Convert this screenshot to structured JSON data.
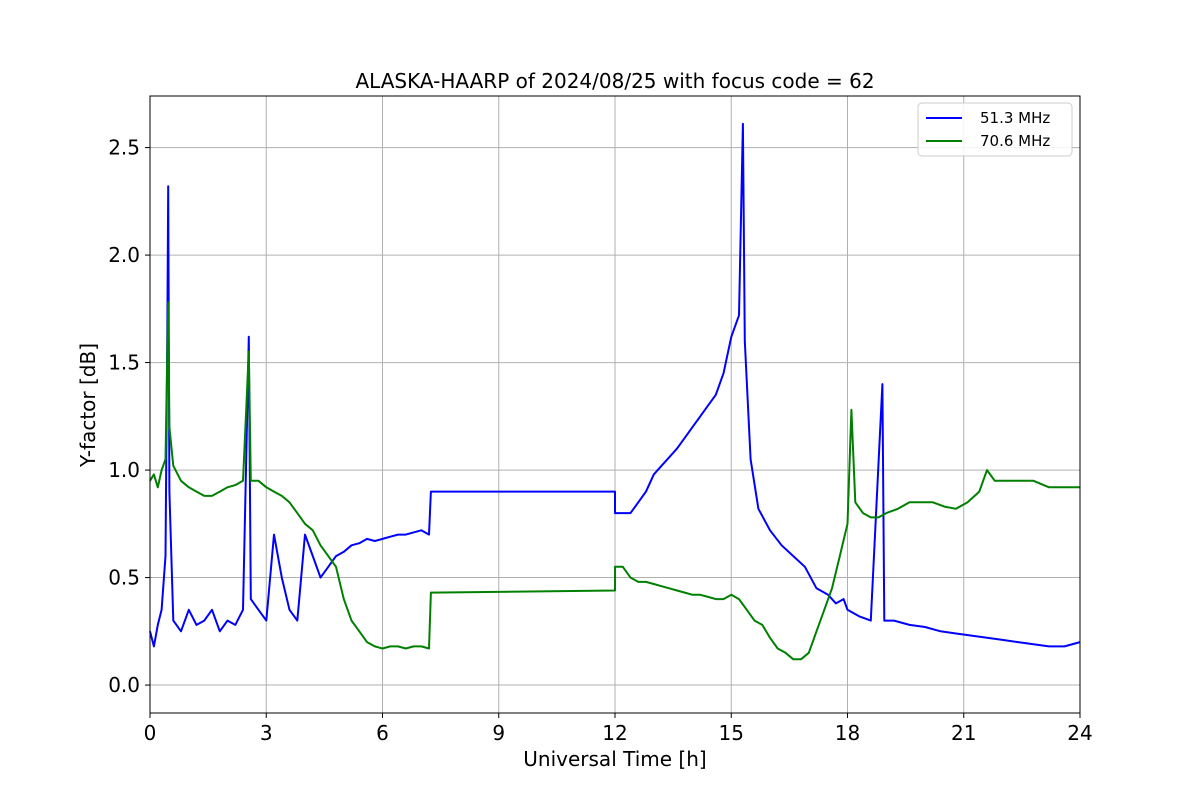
{
  "chart_data": {
    "type": "line",
    "title": "ALASKA-HAARP of 2024/08/25 with focus code = 62",
    "xlabel": "Universal Time [h]",
    "ylabel": "Y-factor [dB]",
    "xlim": [
      0,
      24
    ],
    "ylim": [
      -0.13,
      2.74
    ],
    "xticks": [
      0,
      3,
      6,
      9,
      12,
      15,
      18,
      21,
      24
    ],
    "yticks": [
      0.0,
      0.5,
      1.0,
      1.5,
      2.0,
      2.5
    ],
    "ytick_labels": [
      "0.0",
      "0.5",
      "1.0",
      "1.5",
      "2.0",
      "2.5"
    ],
    "grid": true,
    "legend_position": "top-right",
    "series": [
      {
        "name": "51.3 MHz",
        "color": "#0000ff",
        "points": [
          [
            0.0,
            0.25
          ],
          [
            0.1,
            0.18
          ],
          [
            0.2,
            0.28
          ],
          [
            0.3,
            0.35
          ],
          [
            0.4,
            0.6
          ],
          [
            0.45,
            1.7
          ],
          [
            0.47,
            2.32
          ],
          [
            0.5,
            0.9
          ],
          [
            0.6,
            0.3
          ],
          [
            0.8,
            0.25
          ],
          [
            1.0,
            0.35
          ],
          [
            1.2,
            0.28
          ],
          [
            1.4,
            0.3
          ],
          [
            1.6,
            0.35
          ],
          [
            1.8,
            0.25
          ],
          [
            2.0,
            0.3
          ],
          [
            2.2,
            0.28
          ],
          [
            2.4,
            0.35
          ],
          [
            2.55,
            1.62
          ],
          [
            2.6,
            0.4
          ],
          [
            2.8,
            0.35
          ],
          [
            3.0,
            0.3
          ],
          [
            3.2,
            0.7
          ],
          [
            3.4,
            0.5
          ],
          [
            3.6,
            0.35
          ],
          [
            3.8,
            0.3
          ],
          [
            4.0,
            0.7
          ],
          [
            4.2,
            0.6
          ],
          [
            4.4,
            0.5
          ],
          [
            4.6,
            0.55
          ],
          [
            4.8,
            0.6
          ],
          [
            5.0,
            0.62
          ],
          [
            5.2,
            0.65
          ],
          [
            5.4,
            0.66
          ],
          [
            5.6,
            0.68
          ],
          [
            5.8,
            0.67
          ],
          [
            6.0,
            0.68
          ],
          [
            6.2,
            0.69
          ],
          [
            6.4,
            0.7
          ],
          [
            6.6,
            0.7
          ],
          [
            6.8,
            0.71
          ],
          [
            7.0,
            0.72
          ],
          [
            7.2,
            0.7
          ],
          [
            7.25,
            0.9
          ],
          [
            12.0,
            0.9
          ],
          [
            12.0,
            0.8
          ],
          [
            12.2,
            0.8
          ],
          [
            12.4,
            0.8
          ],
          [
            12.6,
            0.85
          ],
          [
            12.8,
            0.9
          ],
          [
            13.0,
            0.98
          ],
          [
            13.2,
            1.02
          ],
          [
            13.4,
            1.06
          ],
          [
            13.6,
            1.1
          ],
          [
            13.8,
            1.15
          ],
          [
            14.0,
            1.2
          ],
          [
            14.2,
            1.25
          ],
          [
            14.4,
            1.3
          ],
          [
            14.6,
            1.35
          ],
          [
            14.8,
            1.45
          ],
          [
            15.0,
            1.62
          ],
          [
            15.2,
            1.72
          ],
          [
            15.3,
            2.61
          ],
          [
            15.35,
            1.6
          ],
          [
            15.5,
            1.05
          ],
          [
            15.7,
            0.82
          ],
          [
            16.0,
            0.72
          ],
          [
            16.3,
            0.65
          ],
          [
            16.6,
            0.6
          ],
          [
            16.9,
            0.55
          ],
          [
            17.2,
            0.45
          ],
          [
            17.5,
            0.42
          ],
          [
            17.7,
            0.38
          ],
          [
            17.9,
            0.4
          ],
          [
            18.0,
            0.35
          ],
          [
            18.3,
            0.32
          ],
          [
            18.6,
            0.3
          ],
          [
            18.9,
            1.4
          ],
          [
            18.95,
            0.3
          ],
          [
            19.2,
            0.3
          ],
          [
            19.6,
            0.28
          ],
          [
            20.0,
            0.27
          ],
          [
            20.4,
            0.25
          ],
          [
            20.8,
            0.24
          ],
          [
            21.2,
            0.23
          ],
          [
            21.6,
            0.22
          ],
          [
            22.0,
            0.21
          ],
          [
            22.4,
            0.2
          ],
          [
            22.8,
            0.19
          ],
          [
            23.2,
            0.18
          ],
          [
            23.6,
            0.18
          ],
          [
            24.0,
            0.2
          ]
        ]
      },
      {
        "name": "70.6 MHz",
        "color": "#008000",
        "points": [
          [
            0.0,
            0.95
          ],
          [
            0.1,
            0.98
          ],
          [
            0.2,
            0.92
          ],
          [
            0.3,
            1.0
          ],
          [
            0.4,
            1.05
          ],
          [
            0.47,
            1.78
          ],
          [
            0.5,
            1.2
          ],
          [
            0.6,
            1.02
          ],
          [
            0.8,
            0.95
          ],
          [
            1.0,
            0.92
          ],
          [
            1.2,
            0.9
          ],
          [
            1.4,
            0.88
          ],
          [
            1.6,
            0.88
          ],
          [
            1.8,
            0.9
          ],
          [
            2.0,
            0.92
          ],
          [
            2.2,
            0.93
          ],
          [
            2.4,
            0.95
          ],
          [
            2.55,
            1.55
          ],
          [
            2.6,
            0.95
          ],
          [
            2.8,
            0.95
          ],
          [
            3.0,
            0.92
          ],
          [
            3.2,
            0.9
          ],
          [
            3.4,
            0.88
          ],
          [
            3.6,
            0.85
          ],
          [
            3.8,
            0.8
          ],
          [
            4.0,
            0.75
          ],
          [
            4.2,
            0.72
          ],
          [
            4.4,
            0.65
          ],
          [
            4.6,
            0.6
          ],
          [
            4.8,
            0.55
          ],
          [
            5.0,
            0.4
          ],
          [
            5.2,
            0.3
          ],
          [
            5.4,
            0.25
          ],
          [
            5.6,
            0.2
          ],
          [
            5.8,
            0.18
          ],
          [
            6.0,
            0.17
          ],
          [
            6.2,
            0.18
          ],
          [
            6.4,
            0.18
          ],
          [
            6.6,
            0.17
          ],
          [
            6.8,
            0.18
          ],
          [
            7.0,
            0.18
          ],
          [
            7.2,
            0.17
          ],
          [
            7.25,
            0.43
          ],
          [
            12.0,
            0.44
          ],
          [
            12.0,
            0.55
          ],
          [
            12.2,
            0.55
          ],
          [
            12.4,
            0.5
          ],
          [
            12.6,
            0.48
          ],
          [
            12.8,
            0.48
          ],
          [
            13.0,
            0.47
          ],
          [
            13.2,
            0.46
          ],
          [
            13.4,
            0.45
          ],
          [
            13.6,
            0.44
          ],
          [
            13.8,
            0.43
          ],
          [
            14.0,
            0.42
          ],
          [
            14.2,
            0.42
          ],
          [
            14.4,
            0.41
          ],
          [
            14.6,
            0.4
          ],
          [
            14.8,
            0.4
          ],
          [
            15.0,
            0.42
          ],
          [
            15.2,
            0.4
          ],
          [
            15.4,
            0.35
          ],
          [
            15.6,
            0.3
          ],
          [
            15.8,
            0.28
          ],
          [
            16.0,
            0.22
          ],
          [
            16.2,
            0.17
          ],
          [
            16.4,
            0.15
          ],
          [
            16.6,
            0.12
          ],
          [
            16.8,
            0.12
          ],
          [
            17.0,
            0.15
          ],
          [
            17.2,
            0.25
          ],
          [
            17.4,
            0.35
          ],
          [
            17.6,
            0.45
          ],
          [
            17.8,
            0.6
          ],
          [
            18.0,
            0.75
          ],
          [
            18.1,
            1.28
          ],
          [
            18.2,
            0.85
          ],
          [
            18.4,
            0.8
          ],
          [
            18.6,
            0.78
          ],
          [
            18.8,
            0.78
          ],
          [
            19.0,
            0.8
          ],
          [
            19.3,
            0.82
          ],
          [
            19.6,
            0.85
          ],
          [
            19.9,
            0.85
          ],
          [
            20.2,
            0.85
          ],
          [
            20.5,
            0.83
          ],
          [
            20.8,
            0.82
          ],
          [
            21.1,
            0.85
          ],
          [
            21.4,
            0.9
          ],
          [
            21.6,
            1.0
          ],
          [
            21.8,
            0.95
          ],
          [
            22.0,
            0.95
          ],
          [
            22.4,
            0.95
          ],
          [
            22.8,
            0.95
          ],
          [
            23.2,
            0.92
          ],
          [
            23.6,
            0.92
          ],
          [
            24.0,
            0.92
          ]
        ]
      }
    ]
  }
}
